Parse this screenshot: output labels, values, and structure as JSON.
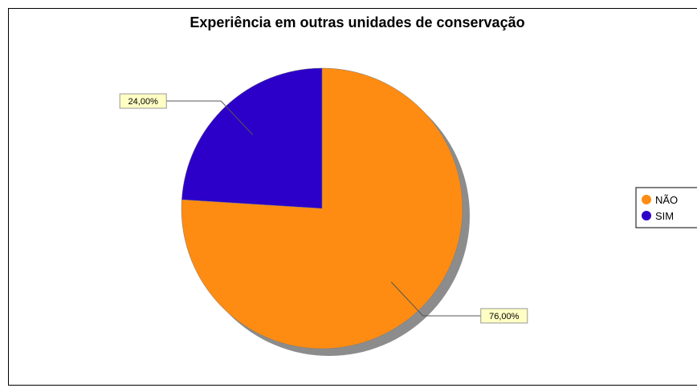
{
  "chart_data": {
    "type": "pie",
    "title": "Experiência em outras unidades de conservação",
    "categories": [
      "NÃO",
      "SIM"
    ],
    "values": [
      76,
      24
    ],
    "labels": [
      "76,00%",
      "24,00%"
    ],
    "colors": [
      "#ff8c12",
      "#2c00c8"
    ],
    "legend": {
      "placement": "right",
      "entries": [
        "NÃO",
        "SIM"
      ]
    }
  }
}
